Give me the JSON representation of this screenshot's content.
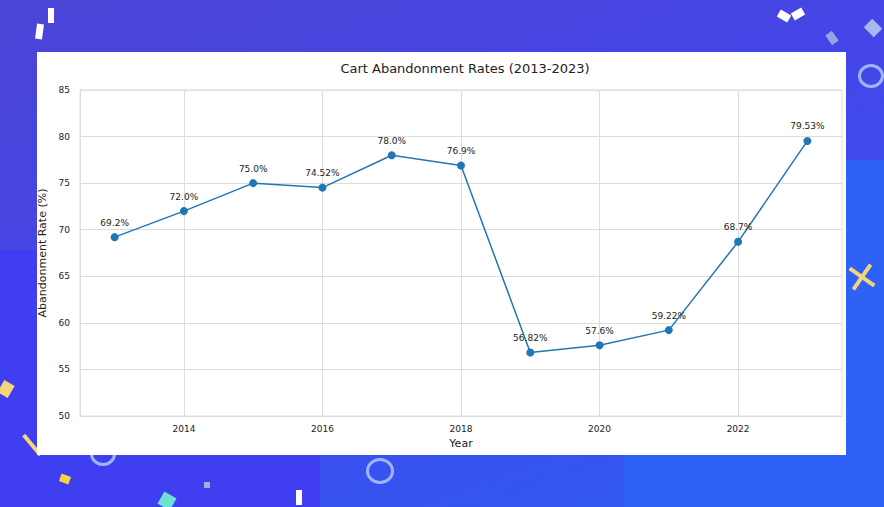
{
  "chart_data": {
    "type": "line",
    "title": "Cart Abandonment Rates (2013-2023)",
    "x_label": "Year",
    "y_label": "Abandonment Rate (%)",
    "x": [
      2013,
      2014,
      2015,
      2016,
      2017,
      2018,
      2019,
      2020,
      2021,
      2022,
      2023
    ],
    "values": [
      69.2,
      72.0,
      75.0,
      74.52,
      78.0,
      76.9,
      56.82,
      57.6,
      59.22,
      68.7,
      79.53
    ],
    "value_labels": [
      "69.2%",
      "72.0%",
      "75.0%",
      "74.52%",
      "78.0%",
      "76.9%",
      "56.82%",
      "57.6%",
      "59.22%",
      "68.7%",
      "79.53%"
    ],
    "color": "#1f77b4",
    "marker": "circle",
    "line_style": "solid",
    "xlim": [
      2012.5,
      2023.5
    ],
    "xticks": [
      2014,
      2016,
      2018,
      2020,
      2022
    ],
    "ylim": [
      50,
      85
    ],
    "yticks": [
      50,
      55,
      60,
      65,
      70,
      75,
      80,
      85
    ],
    "grid": true,
    "data_labels": true
  }
}
